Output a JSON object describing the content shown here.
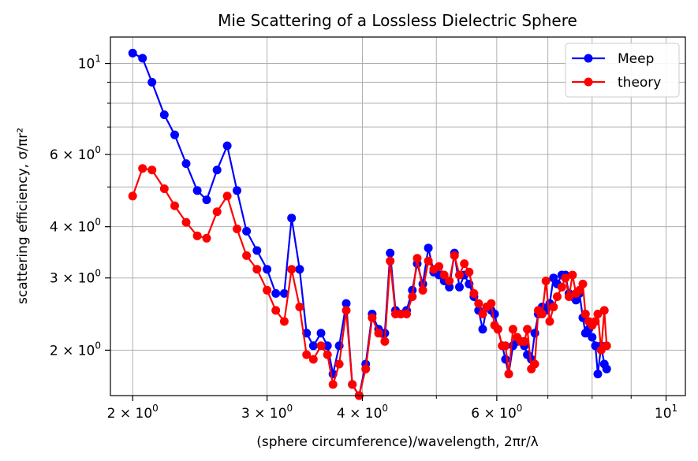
{
  "chart_data": {
    "type": "line",
    "title": "Mie Scattering of a Lossless Dielectric Sphere",
    "xlabel": "(sphere circumference)/wavelength, 2πr/λ",
    "ylabel": "scattering efficiency, σ/πr²",
    "xscale": "log",
    "yscale": "log",
    "xlim": [
      1.87,
      10.6
    ],
    "ylim": [
      1.55,
      11.6
    ],
    "grid": true,
    "legend_position": "top-right",
    "x_major_ticks": [
      {
        "value": 2,
        "base": "2 × 10",
        "exp": "0"
      },
      {
        "value": 3,
        "base": "3 × 10",
        "exp": "0"
      },
      {
        "value": 4,
        "base": "4 × 10",
        "exp": "0"
      },
      {
        "value": 6,
        "base": "6 × 10",
        "exp": "0"
      },
      {
        "value": 10,
        "base": "10",
        "exp": "1"
      }
    ],
    "x_minor_ticks": [
      5,
      7,
      8,
      9
    ],
    "y_major_ticks": [
      {
        "value": 2,
        "base": "2 × 10",
        "exp": "0"
      },
      {
        "value": 3,
        "base": "3 × 10",
        "exp": "0"
      },
      {
        "value": 4,
        "base": "4 × 10",
        "exp": "0"
      },
      {
        "value": 6,
        "base": "6 × 10",
        "exp": "0"
      },
      {
        "value": 10,
        "base": "10",
        "exp": "1"
      }
    ],
    "y_minor_ticks": [
      5,
      7,
      8,
      9
    ],
    "series": [
      {
        "name": "Meep",
        "color": "#0000ff",
        "points": [
          [
            2.0,
            10.6
          ],
          [
            2.06,
            10.3
          ],
          [
            2.12,
            9.0
          ],
          [
            2.2,
            7.5
          ],
          [
            2.27,
            6.7
          ],
          [
            2.35,
            5.7
          ],
          [
            2.43,
            4.9
          ],
          [
            2.5,
            4.65
          ],
          [
            2.58,
            5.5
          ],
          [
            2.66,
            6.3
          ],
          [
            2.74,
            4.9
          ],
          [
            2.82,
            3.9
          ],
          [
            2.91,
            3.5
          ],
          [
            3.0,
            3.15
          ],
          [
            3.08,
            2.75
          ],
          [
            3.16,
            2.75
          ],
          [
            3.23,
            4.2
          ],
          [
            3.31,
            3.15
          ],
          [
            3.38,
            2.2
          ],
          [
            3.45,
            2.05
          ],
          [
            3.53,
            2.2
          ],
          [
            3.6,
            2.05
          ],
          [
            3.66,
            1.75
          ],
          [
            3.73,
            2.05
          ],
          [
            3.81,
            2.6
          ],
          [
            3.88,
            1.65
          ],
          [
            3.96,
            1.55
          ],
          [
            4.04,
            1.85
          ],
          [
            4.12,
            2.45
          ],
          [
            4.2,
            2.25
          ],
          [
            4.28,
            2.2
          ],
          [
            4.35,
            3.45
          ],
          [
            4.42,
            2.5
          ],
          [
            4.49,
            2.45
          ],
          [
            4.57,
            2.5
          ],
          [
            4.65,
            2.8
          ],
          [
            4.72,
            3.25
          ],
          [
            4.8,
            2.9
          ],
          [
            4.88,
            3.55
          ],
          [
            4.96,
            3.1
          ],
          [
            5.04,
            3.05
          ],
          [
            5.12,
            2.95
          ],
          [
            5.2,
            2.85
          ],
          [
            5.28,
            3.45
          ],
          [
            5.36,
            2.85
          ],
          [
            5.44,
            3.05
          ],
          [
            5.52,
            2.9
          ],
          [
            5.6,
            2.7
          ],
          [
            5.68,
            2.5
          ],
          [
            5.75,
            2.25
          ],
          [
            5.82,
            2.55
          ],
          [
            5.9,
            2.5
          ],
          [
            5.96,
            2.45
          ],
          [
            6.02,
            2.25
          ],
          [
            6.1,
            2.05
          ],
          [
            6.16,
            1.9
          ],
          [
            6.22,
            1.75
          ],
          [
            6.3,
            2.05
          ],
          [
            6.38,
            2.1
          ],
          [
            6.45,
            2.1
          ],
          [
            6.52,
            2.05
          ],
          [
            6.58,
            1.95
          ],
          [
            6.66,
            1.9
          ],
          [
            6.73,
            2.2
          ],
          [
            6.8,
            2.45
          ],
          [
            6.88,
            2.55
          ],
          [
            6.96,
            2.5
          ],
          [
            7.04,
            2.6
          ],
          [
            7.12,
            3.0
          ],
          [
            7.2,
            2.9
          ],
          [
            7.3,
            3.05
          ],
          [
            7.38,
            3.05
          ],
          [
            7.46,
            2.75
          ],
          [
            7.54,
            2.7
          ],
          [
            7.62,
            2.65
          ],
          [
            7.7,
            2.75
          ],
          [
            7.78,
            2.4
          ],
          [
            7.84,
            2.2
          ],
          [
            7.92,
            2.25
          ],
          [
            8.0,
            2.15
          ],
          [
            8.08,
            2.05
          ],
          [
            8.14,
            1.75
          ],
          [
            8.22,
            2.05
          ],
          [
            8.3,
            1.85
          ],
          [
            8.36,
            1.8
          ]
        ]
      },
      {
        "name": "theory",
        "color": "#ff0000",
        "points": [
          [
            2.0,
            4.75
          ],
          [
            2.06,
            5.55
          ],
          [
            2.12,
            5.5
          ],
          [
            2.2,
            4.95
          ],
          [
            2.27,
            4.5
          ],
          [
            2.35,
            4.1
          ],
          [
            2.43,
            3.8
          ],
          [
            2.5,
            3.75
          ],
          [
            2.58,
            4.35
          ],
          [
            2.66,
            4.75
          ],
          [
            2.74,
            3.95
          ],
          [
            2.82,
            3.4
          ],
          [
            2.91,
            3.15
          ],
          [
            3.0,
            2.8
          ],
          [
            3.08,
            2.5
          ],
          [
            3.16,
            2.35
          ],
          [
            3.23,
            3.15
          ],
          [
            3.31,
            2.55
          ],
          [
            3.38,
            1.95
          ],
          [
            3.45,
            1.9
          ],
          [
            3.53,
            2.05
          ],
          [
            3.6,
            1.95
          ],
          [
            3.66,
            1.65
          ],
          [
            3.73,
            1.85
          ],
          [
            3.81,
            2.5
          ],
          [
            3.88,
            1.65
          ],
          [
            3.96,
            1.55
          ],
          [
            4.04,
            1.8
          ],
          [
            4.12,
            2.4
          ],
          [
            4.2,
            2.2
          ],
          [
            4.28,
            2.1
          ],
          [
            4.35,
            3.3
          ],
          [
            4.42,
            2.45
          ],
          [
            4.49,
            2.45
          ],
          [
            4.57,
            2.45
          ],
          [
            4.65,
            2.7
          ],
          [
            4.72,
            3.35
          ],
          [
            4.8,
            2.8
          ],
          [
            4.88,
            3.3
          ],
          [
            4.96,
            3.15
          ],
          [
            5.04,
            3.2
          ],
          [
            5.12,
            3.05
          ],
          [
            5.2,
            2.95
          ],
          [
            5.28,
            3.4
          ],
          [
            5.36,
            3.05
          ],
          [
            5.44,
            3.25
          ],
          [
            5.52,
            3.1
          ],
          [
            5.6,
            2.75
          ],
          [
            5.68,
            2.6
          ],
          [
            5.75,
            2.45
          ],
          [
            5.82,
            2.55
          ],
          [
            5.9,
            2.6
          ],
          [
            5.96,
            2.3
          ],
          [
            6.02,
            2.25
          ],
          [
            6.1,
            2.05
          ],
          [
            6.16,
            2.05
          ],
          [
            6.22,
            1.75
          ],
          [
            6.3,
            2.25
          ],
          [
            6.38,
            2.15
          ],
          [
            6.45,
            2.1
          ],
          [
            6.52,
            2.1
          ],
          [
            6.58,
            2.25
          ],
          [
            6.66,
            1.8
          ],
          [
            6.73,
            1.85
          ],
          [
            6.8,
            2.5
          ],
          [
            6.88,
            2.45
          ],
          [
            6.96,
            2.95
          ],
          [
            7.04,
            2.35
          ],
          [
            7.12,
            2.55
          ],
          [
            7.2,
            2.7
          ],
          [
            7.3,
            2.85
          ],
          [
            7.38,
            3.0
          ],
          [
            7.46,
            2.7
          ],
          [
            7.54,
            3.05
          ],
          [
            7.62,
            2.75
          ],
          [
            7.7,
            2.8
          ],
          [
            7.78,
            2.9
          ],
          [
            7.84,
            2.45
          ],
          [
            7.92,
            2.35
          ],
          [
            8.0,
            2.3
          ],
          [
            8.08,
            2.35
          ],
          [
            8.14,
            2.45
          ],
          [
            8.22,
            2.0
          ],
          [
            8.3,
            2.5
          ],
          [
            8.36,
            2.05
          ]
        ]
      }
    ]
  }
}
